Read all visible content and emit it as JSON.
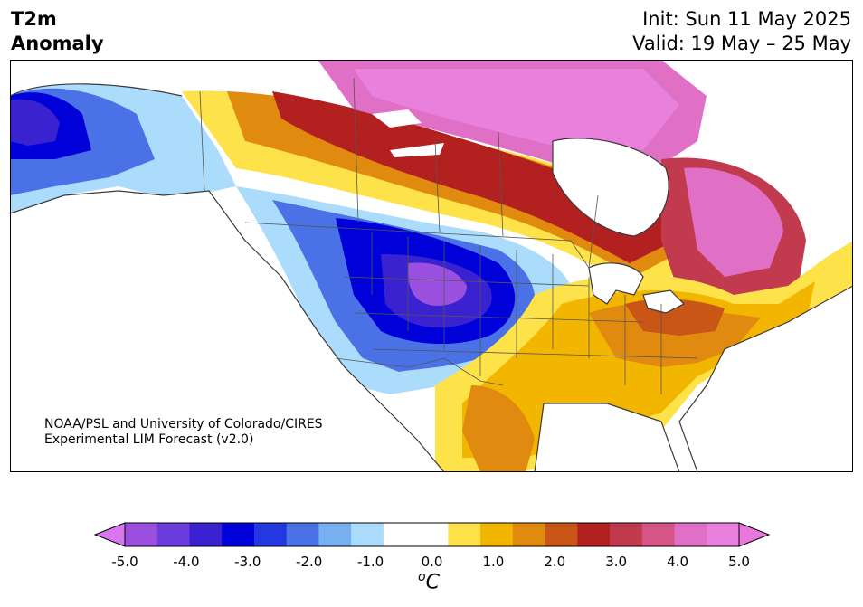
{
  "title": {
    "variable": "T2m",
    "subtitle": "Anomaly",
    "init": "Init: Sun 11 May 2025",
    "valid": "Valid: 19 May – 25 May"
  },
  "credit": {
    "line1": "NOAA/PSL and University of Colorado/CIRES",
    "line2": "Experimental LIM Forecast (v2.0)"
  },
  "colorbar": {
    "unit_base": "C",
    "unit_prefix": "o",
    "ticks": [
      "-5.0",
      "-4.0",
      "-3.0",
      "-2.0",
      "-1.0",
      "0.0",
      "1.0",
      "2.0",
      "3.0",
      "4.0",
      "5.0"
    ],
    "levels": [
      -5.0,
      -4.5,
      -4.0,
      -3.5,
      -3.0,
      -2.5,
      -2.0,
      -1.5,
      -1.0,
      -0.5,
      0.5,
      1.0,
      1.5,
      2.0,
      2.5,
      3.0,
      3.5,
      4.0,
      4.5,
      5.0
    ],
    "colors": [
      "#9b50e0",
      "#6b3ddc",
      "#3a22d0",
      "#0000d8",
      "#2338e0",
      "#4a72e6",
      "#78b0f2",
      "#acdcfc",
      "#ffffff",
      "#ffffff",
      "#fde24a",
      "#f2b500",
      "#e08a10",
      "#c95516",
      "#b32020",
      "#c23a4e",
      "#d65486",
      "#e070c6",
      "#e880dc"
    ],
    "extend_low_color": "#d878ec",
    "extend_high_color": "#e878dc"
  },
  "map_colors": {
    "land": "#ffffff",
    "outline": "#3a3a3a"
  }
}
